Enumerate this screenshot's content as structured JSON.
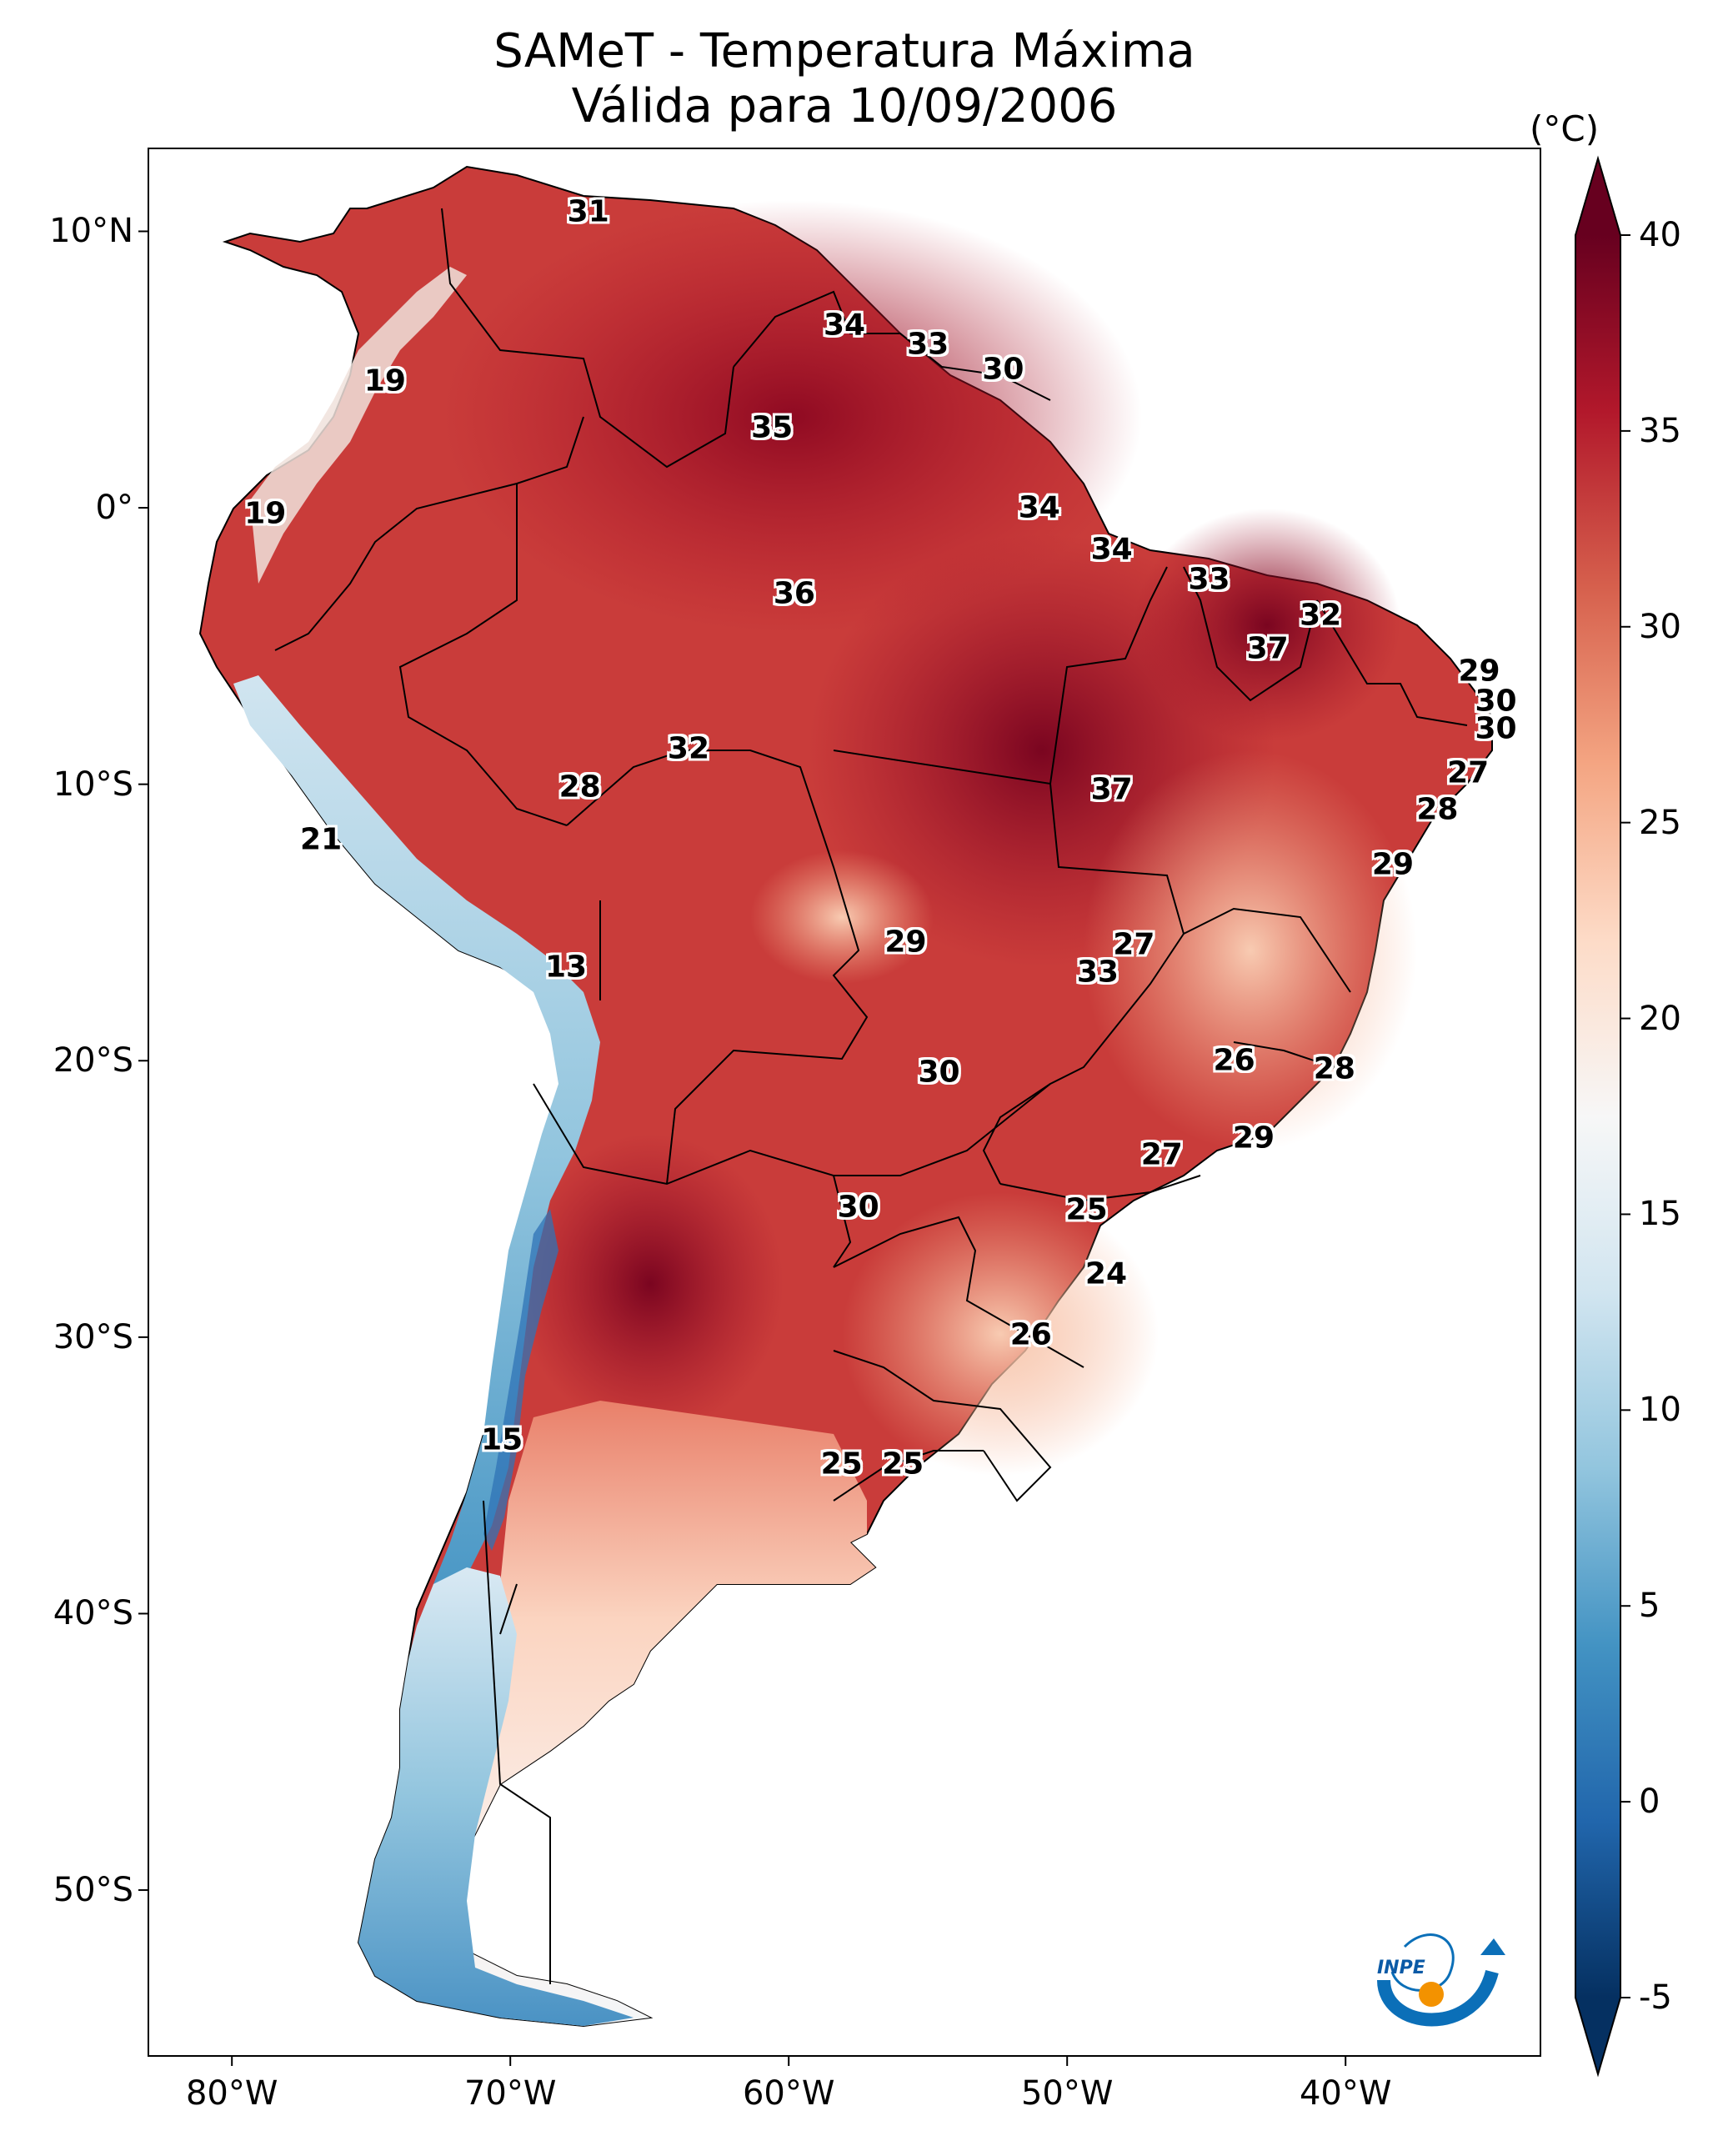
{
  "map": {
    "title_line1": "SAMeT - Temperatura Máxima",
    "title_line2": "Válida para 10/09/2006",
    "lat_ticks": [
      {
        "value": 10,
        "label": "10°N"
      },
      {
        "value": 0,
        "label": "0°"
      },
      {
        "value": -10,
        "label": "10°S"
      },
      {
        "value": -20,
        "label": "20°S"
      },
      {
        "value": -30,
        "label": "30°S"
      },
      {
        "value": -40,
        "label": "40°S"
      },
      {
        "value": -50,
        "label": "50°S"
      }
    ],
    "lon_ticks": [
      {
        "value": -80,
        "label": "80°W"
      },
      {
        "value": -70,
        "label": "70°W"
      },
      {
        "value": -60,
        "label": "60°W"
      },
      {
        "value": -50,
        "label": "50°W"
      },
      {
        "value": -40,
        "label": "40°W"
      }
    ],
    "extent": {
      "lon_min": -83,
      "lon_max": -33,
      "lat_min": -56,
      "lat_max": 13
    }
  },
  "colorbar": {
    "unit": "(°C)",
    "ticks": [
      {
        "value": 40,
        "label": "40"
      },
      {
        "value": 35,
        "label": "35"
      },
      {
        "value": 30,
        "label": "30"
      },
      {
        "value": 25,
        "label": "25"
      },
      {
        "value": 20,
        "label": "20"
      },
      {
        "value": 15,
        "label": "15"
      },
      {
        "value": 10,
        "label": "10"
      },
      {
        "value": 5,
        "label": "5"
      },
      {
        "value": 0,
        "label": "0"
      },
      {
        "value": -5,
        "label": "-5"
      }
    ],
    "min": -5,
    "max": 40,
    "colors": [
      "#053061",
      "#2166ac",
      "#4393c3",
      "#92c5de",
      "#d1e5f0",
      "#f7f7f7",
      "#fddbc7",
      "#f4a582",
      "#d6604d",
      "#b2182b",
      "#67001f"
    ]
  },
  "contour_labels": [
    {
      "text": "31",
      "lon": -67.2,
      "lat": 10.7
    },
    {
      "text": "34",
      "lon": -58.0,
      "lat": 6.6
    },
    {
      "text": "33",
      "lon": -55.0,
      "lat": 5.9
    },
    {
      "text": "30",
      "lon": -52.3,
      "lat": 5.0
    },
    {
      "text": "19",
      "lon": -74.5,
      "lat": 4.6
    },
    {
      "text": "35",
      "lon": -60.6,
      "lat": 2.9
    },
    {
      "text": "19",
      "lon": -78.8,
      "lat": -0.2
    },
    {
      "text": "34",
      "lon": -51.0,
      "lat": 0.0
    },
    {
      "text": "34",
      "lon": -48.4,
      "lat": -1.5
    },
    {
      "text": "33",
      "lon": -44.9,
      "lat": -2.6
    },
    {
      "text": "36",
      "lon": -59.8,
      "lat": -3.1
    },
    {
      "text": "32",
      "lon": -40.9,
      "lat": -3.9
    },
    {
      "text": "37",
      "lon": -42.8,
      "lat": -5.1
    },
    {
      "text": "29",
      "lon": -35.2,
      "lat": -5.9
    },
    {
      "text": "30",
      "lon": -34.6,
      "lat": -7.0
    },
    {
      "text": "30",
      "lon": -34.6,
      "lat": -8.0
    },
    {
      "text": "32",
      "lon": -63.6,
      "lat": -8.7
    },
    {
      "text": "27",
      "lon": -35.6,
      "lat": -9.6
    },
    {
      "text": "28",
      "lon": -67.5,
      "lat": -10.1
    },
    {
      "text": "37",
      "lon": -48.4,
      "lat": -10.2
    },
    {
      "text": "28",
      "lon": -36.7,
      "lat": -10.9
    },
    {
      "text": "21",
      "lon": -76.8,
      "lat": -12.0
    },
    {
      "text": "29",
      "lon": -38.3,
      "lat": -12.9
    },
    {
      "text": "29",
      "lon": -55.8,
      "lat": -15.7
    },
    {
      "text": "27",
      "lon": -47.6,
      "lat": -15.8
    },
    {
      "text": "13",
      "lon": -68.0,
      "lat": -16.6
    },
    {
      "text": "33",
      "lon": -48.9,
      "lat": -16.8
    },
    {
      "text": "26",
      "lon": -44.0,
      "lat": -20.0
    },
    {
      "text": "30",
      "lon": -54.6,
      "lat": -20.4
    },
    {
      "text": "28",
      "lon": -40.4,
      "lat": -20.3
    },
    {
      "text": "29",
      "lon": -43.3,
      "lat": -22.8
    },
    {
      "text": "27",
      "lon": -46.6,
      "lat": -23.4
    },
    {
      "text": "30",
      "lon": -57.5,
      "lat": -25.3
    },
    {
      "text": "25",
      "lon": -49.3,
      "lat": -25.4
    },
    {
      "text": "24",
      "lon": -48.6,
      "lat": -27.7
    },
    {
      "text": "26",
      "lon": -51.3,
      "lat": -29.9
    },
    {
      "text": "15",
      "lon": -70.3,
      "lat": -33.7
    },
    {
      "text": "25",
      "lon": -58.1,
      "lat": -34.6
    },
    {
      "text": "25",
      "lon": -55.9,
      "lat": -34.6
    }
  ],
  "logo": {
    "text": "INPE"
  }
}
